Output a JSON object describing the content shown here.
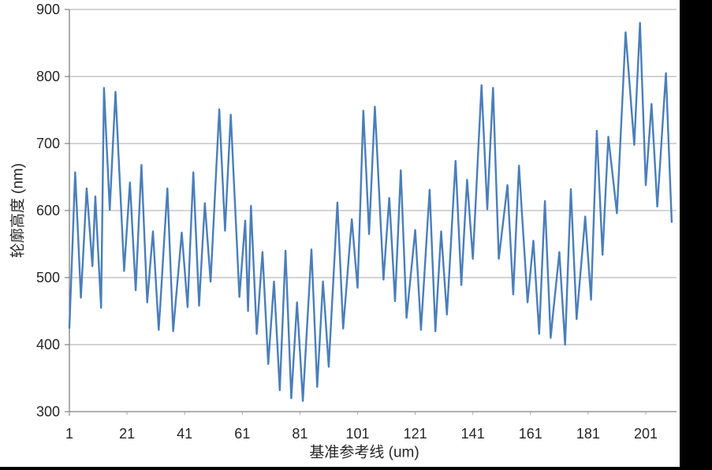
{
  "page": {
    "background": "#ffffff",
    "right_bar_color": "#000000",
    "bottom_bar_color": "#000000"
  },
  "chart_data": {
    "type": "line",
    "title": "",
    "xlabel": "基准参考线 (um)",
    "ylabel": "轮廓高度 (nm)",
    "x_ticks": [
      1,
      21,
      41,
      61,
      81,
      101,
      121,
      141,
      161,
      181,
      201
    ],
    "y_ticks": [
      300,
      400,
      500,
      600,
      700,
      800,
      900
    ],
    "xlim": [
      1,
      211
    ],
    "ylim": [
      300,
      900
    ],
    "grid": true,
    "legend_position": "none",
    "line_color": "#4a7ebb",
    "gridline_color": "#a8a8a8",
    "axis_color": "#7f7f7f",
    "text_color": "#262626",
    "x_start": 1,
    "x_step": 1,
    "values": [
      425,
      541,
      657,
      564,
      470,
      552,
      633,
      575,
      517,
      621,
      538,
      455,
      783,
      692,
      601,
      689,
      777,
      688,
      599,
      510,
      576,
      642,
      562,
      481,
      575,
      668,
      566,
      463,
      516,
      569,
      496,
      422,
      492,
      563,
      633,
      527,
      420,
      469,
      518,
      567,
      512,
      456,
      557,
      657,
      558,
      458,
      535,
      611,
      553,
      494,
      580,
      665,
      751,
      661,
      570,
      657,
      743,
      652,
      562,
      471,
      528,
      585,
      450,
      607,
      512,
      416,
      477,
      538,
      455,
      371,
      433,
      494,
      413,
      332,
      436,
      540,
      430,
      320,
      392,
      463,
      390,
      316,
      391,
      467,
      542,
      440,
      337,
      416,
      494,
      431,
      367,
      449,
      530,
      612,
      518,
      424,
      478,
      533,
      587,
      536,
      485,
      617,
      749,
      657,
      565,
      660,
      755,
      669,
      583,
      497,
      558,
      619,
      542,
      465,
      563,
      660,
      550,
      440,
      484,
      527,
      571,
      497,
      422,
      492,
      561,
      631,
      526,
      420,
      495,
      569,
      507,
      445,
      521,
      598,
      674,
      582,
      489,
      568,
      646,
      587,
      528,
      614,
      701,
      787,
      695,
      602,
      693,
      783,
      656,
      528,
      565,
      601,
      638,
      557,
      475,
      571,
      667,
      599,
      531,
      463,
      509,
      555,
      486,
      416,
      515,
      614,
      512,
      410,
      453,
      495,
      538,
      469,
      400,
      516,
      632,
      535,
      438,
      489,
      540,
      591,
      529,
      467,
      593,
      719,
      627,
      534,
      622,
      710,
      672,
      634,
      596,
      686,
      776,
      866,
      810,
      754,
      698,
      789,
      880,
      759,
      638,
      699,
      759,
      683,
      606,
      672,
      739,
      805,
      694,
      583
    ]
  }
}
